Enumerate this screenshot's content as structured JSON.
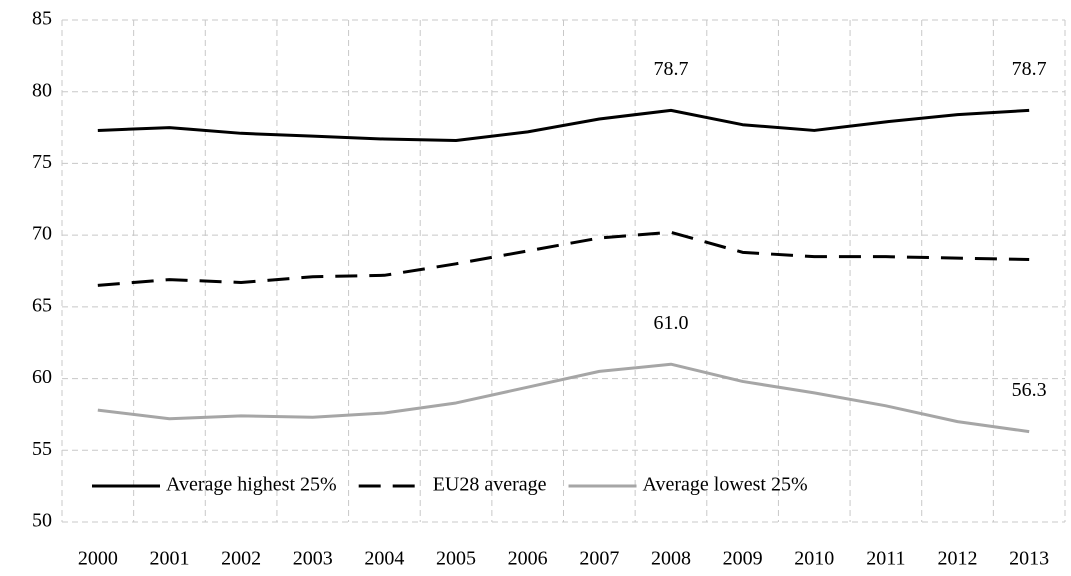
{
  "chart_data": {
    "type": "line",
    "categories": [
      "2000",
      "2001",
      "2002",
      "2003",
      "2004",
      "2005",
      "2006",
      "2007",
      "2008",
      "2009",
      "2010",
      "2011",
      "2012",
      "2013"
    ],
    "series": [
      {
        "name": "Average highest 25%",
        "color": "#000000",
        "dash": "solid",
        "values": [
          77.3,
          77.5,
          77.1,
          76.9,
          76.7,
          76.6,
          77.2,
          78.1,
          78.7,
          77.7,
          77.3,
          77.9,
          78.4,
          78.7
        ],
        "value_labels": [
          null,
          null,
          null,
          null,
          null,
          null,
          null,
          null,
          "78.7",
          null,
          null,
          null,
          null,
          "78.7"
        ]
      },
      {
        "name": "EU28 average",
        "color": "#000000",
        "dash": "dashed",
        "values": [
          66.5,
          66.9,
          66.7,
          67.1,
          67.2,
          68.0,
          68.9,
          69.8,
          70.2,
          68.8,
          68.5,
          68.5,
          68.4,
          68.3
        ]
      },
      {
        "name": "Average lowest 25%",
        "color": "#a6a6a6",
        "dash": "solid",
        "values": [
          57.8,
          57.2,
          57.4,
          57.3,
          57.6,
          58.3,
          59.4,
          60.5,
          61.0,
          59.8,
          59.0,
          58.1,
          57.0,
          56.3
        ],
        "value_labels": [
          null,
          null,
          null,
          null,
          null,
          null,
          null,
          null,
          "61.0",
          null,
          null,
          null,
          null,
          "56.3"
        ]
      }
    ],
    "ylim": [
      50,
      85
    ],
    "yticks": [
      50,
      55,
      60,
      65,
      70,
      75,
      80,
      85
    ],
    "grid": true,
    "legend": "bottom"
  }
}
